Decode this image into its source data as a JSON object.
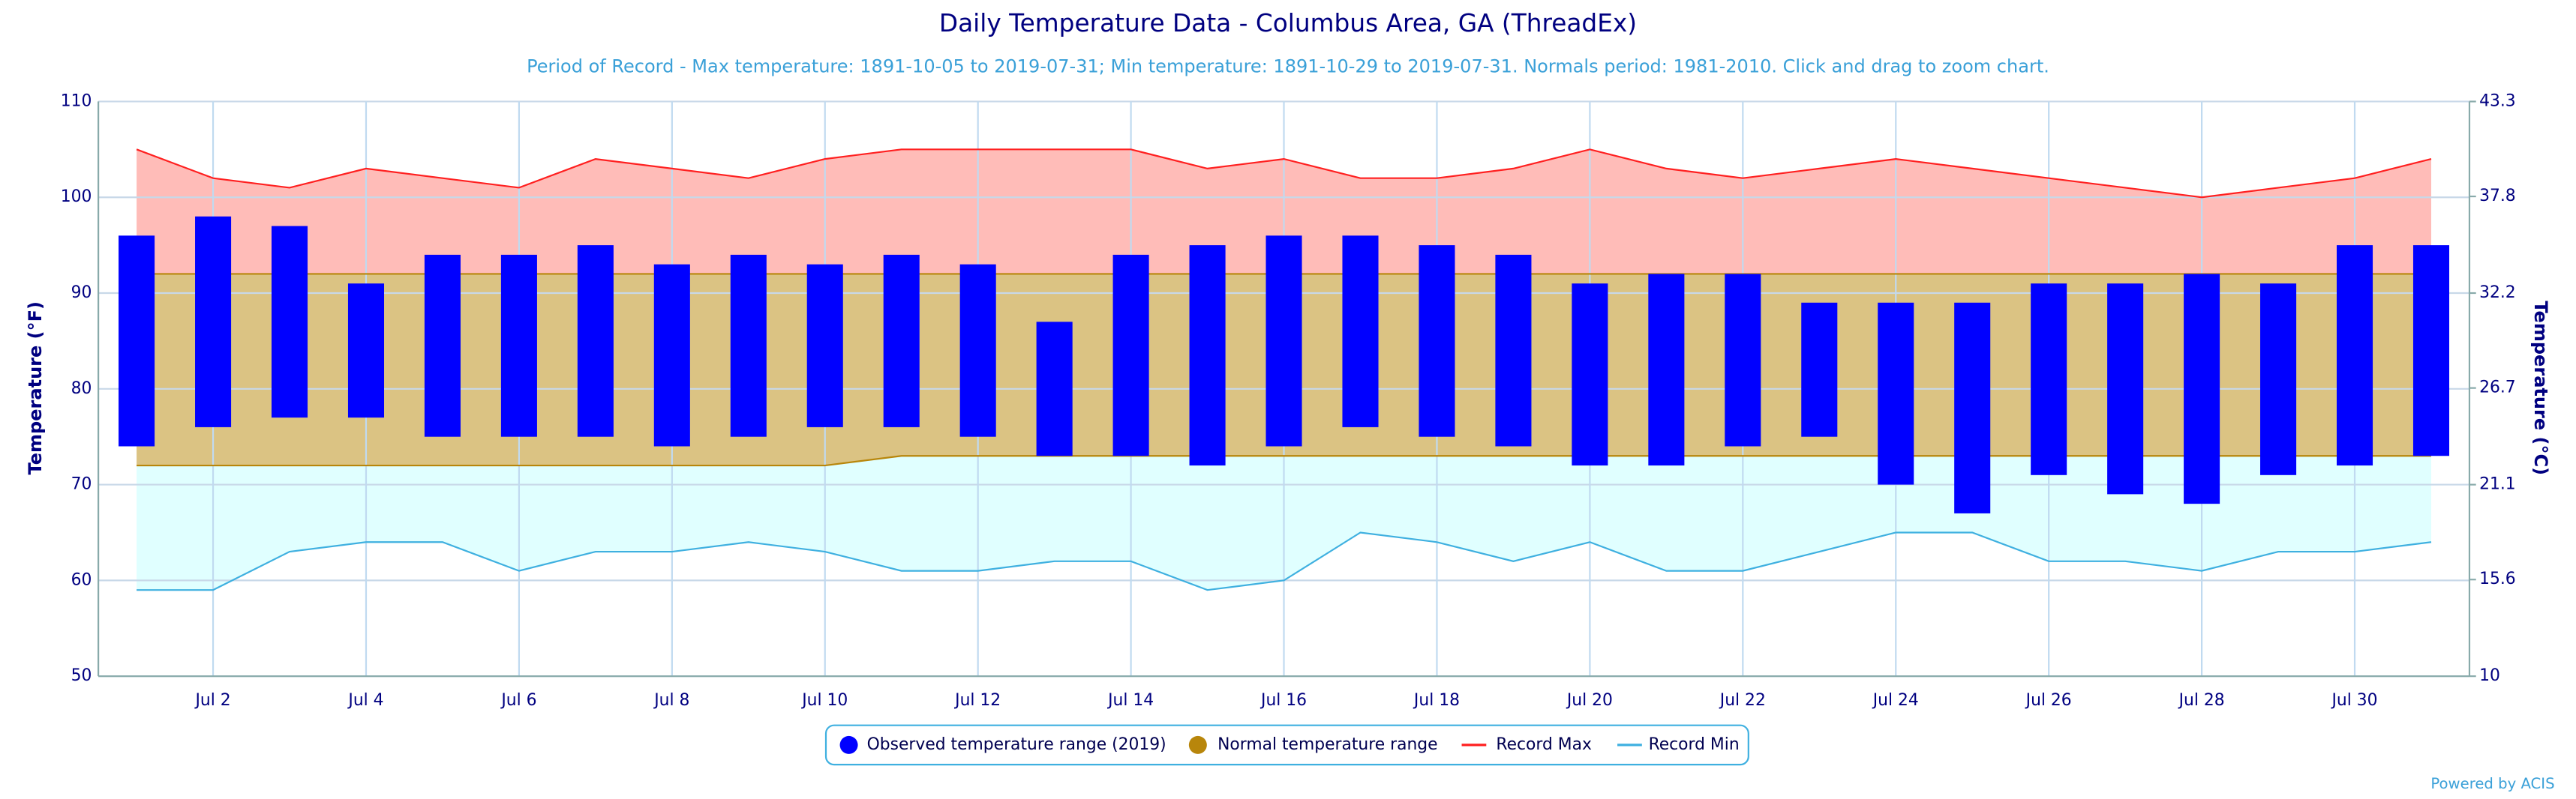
{
  "chart_data": {
    "type": "range-area",
    "title": "Daily Temperature Data - Columbus Area, GA (ThreadEx)",
    "subtitle": "Period of Record - Max temperature: 1891-10-05 to 2019-07-31; Min temperature: 1891-10-29 to 2019-07-31. Normals period: 1981-2010. Click and drag to zoom chart.",
    "y_label": "Temperature (°F)",
    "y2_label": "Temperature (°C)",
    "credit": "Powered by ACIS",
    "categories": [
      null,
      "Jul 2",
      null,
      "Jul 4",
      null,
      "Jul 6",
      null,
      "Jul 8",
      null,
      "Jul 10",
      null,
      "Jul 12",
      null,
      "Jul 14",
      null,
      "Jul 16",
      null,
      "Jul 18",
      null,
      "Jul 20",
      null,
      "Jul 22",
      null,
      "Jul 24",
      null,
      "Jul 26",
      null,
      "Jul 28",
      null,
      "Jul 30",
      null
    ],
    "series": [
      {
        "name": "Observed temperature range (2019)",
        "color": "#0000ff",
        "high": [
          96,
          98,
          97,
          91,
          94,
          94,
          95,
          93,
          94,
          93,
          94,
          93,
          87,
          94,
          95,
          96,
          96,
          95,
          94,
          91,
          92,
          92,
          89,
          89,
          89,
          91,
          91,
          92,
          91,
          95,
          95
        ],
        "low": [
          74,
          76,
          77,
          77,
          75,
          75,
          75,
          74,
          75,
          76,
          76,
          75,
          73,
          73,
          72,
          74,
          76,
          75,
          74,
          72,
          72,
          74,
          75,
          70,
          67,
          71,
          69,
          68,
          71,
          72,
          73
        ]
      },
      {
        "name": "Normal temperature range",
        "color": "#b8860b",
        "fill": "#dbc383",
        "high": [
          92,
          92,
          92,
          92,
          92,
          92,
          92,
          92,
          92,
          92,
          92,
          92,
          92,
          92,
          92,
          92,
          92,
          92,
          92,
          92,
          92,
          92,
          92,
          92,
          92,
          92,
          92,
          92,
          92,
          92,
          92
        ],
        "low": [
          72,
          72,
          72,
          72,
          72,
          72,
          72,
          72,
          72,
          72,
          73,
          73,
          73,
          73,
          73,
          73,
          73,
          73,
          73,
          73,
          73,
          73,
          73,
          73,
          73,
          73,
          73,
          73,
          73,
          73,
          73
        ]
      },
      {
        "name": "Record Max",
        "color": "#ff2020",
        "fill": "#ffbcb8",
        "values": [
          105,
          102,
          101,
          103,
          102,
          101,
          104,
          103,
          102,
          104,
          105,
          105,
          105,
          105,
          103,
          104,
          102,
          102,
          103,
          105,
          103,
          102,
          103,
          104,
          103,
          102,
          101,
          100,
          101,
          102,
          104
        ]
      },
      {
        "name": "Record Min",
        "color": "#3fb0e0",
        "fill": "#e0ffff",
        "values": [
          59,
          59,
          63,
          64,
          64,
          61,
          63,
          63,
          64,
          63,
          61,
          61,
          62,
          62,
          59,
          60,
          65,
          64,
          62,
          64,
          61,
          61,
          63,
          65,
          65,
          62,
          62,
          61,
          63,
          63,
          64
        ]
      }
    ],
    "ylim": [
      50,
      110
    ],
    "yticks": [
      50,
      60,
      70,
      80,
      90,
      100,
      110
    ],
    "y2lim": [
      10,
      43.3
    ],
    "y2ticks": [
      10,
      15.6,
      21.1,
      26.7,
      32.2,
      37.8,
      43.3
    ],
    "grid": true,
    "legend": "bottom"
  }
}
